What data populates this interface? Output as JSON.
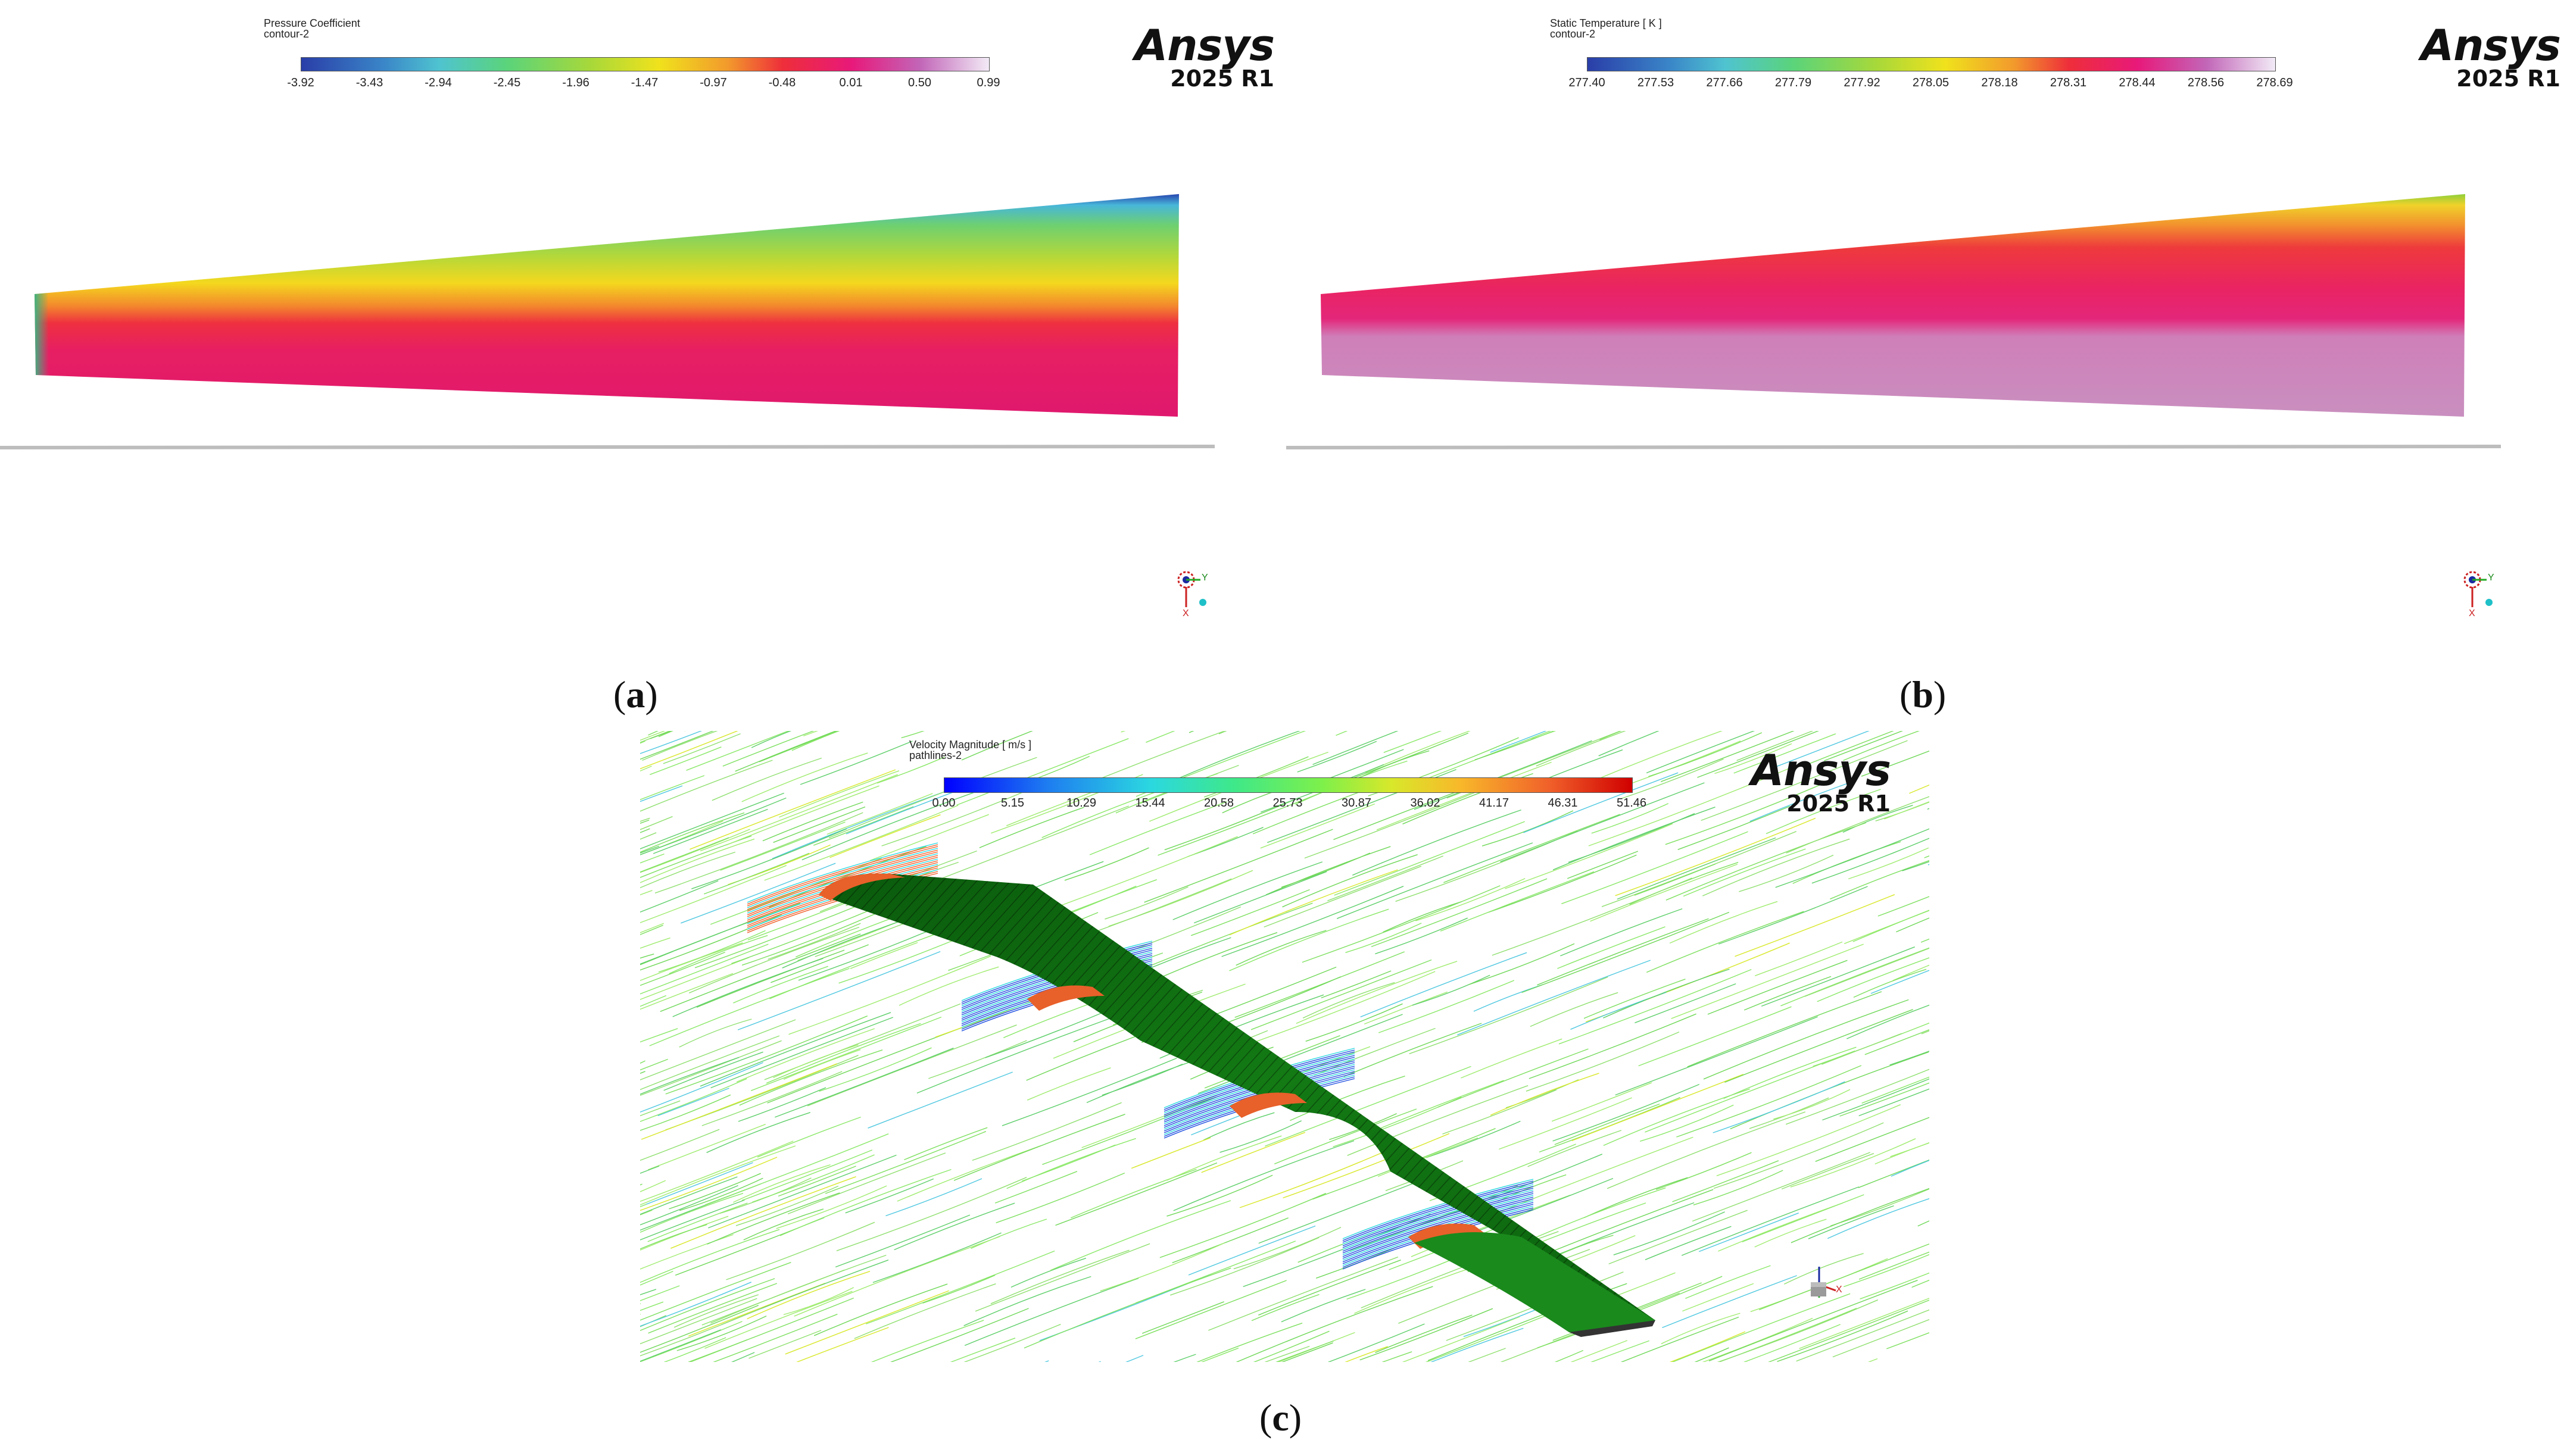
{
  "panels": [
    {
      "id": "a",
      "caption_open": "(",
      "caption_letter": "a",
      "caption_close": ")",
      "colorbar": {
        "title": "Pressure Coefficient",
        "subtitle": "contour-2",
        "ticks": [
          "-3.92",
          "-3.43",
          "-2.94",
          "-2.45",
          "-1.96",
          "-1.47",
          "-0.97",
          "-0.48",
          "0.01",
          "0.50",
          "0.99"
        ]
      },
      "logo": {
        "brand": "Ansys",
        "version": "2025 R1"
      },
      "axis_triad": {
        "label_y": "Y",
        "label_x": "X"
      }
    },
    {
      "id": "b",
      "caption_open": "(",
      "caption_letter": "b",
      "caption_close": ")",
      "colorbar": {
        "title": "Static Temperature [ K ]",
        "subtitle": "contour-2",
        "ticks": [
          "277.40",
          "277.53",
          "277.66",
          "277.79",
          "277.92",
          "278.05",
          "278.18",
          "278.31",
          "278.44",
          "278.56",
          "278.69"
        ]
      },
      "logo": {
        "brand": "Ansys",
        "version": "2025 R1"
      },
      "axis_triad": {
        "label_y": "Y",
        "label_x": "X"
      }
    },
    {
      "id": "c",
      "caption_open": "(",
      "caption_letter": "c",
      "caption_close": ")",
      "colorbar": {
        "title": "Velocity Magnitude [ m/s ]",
        "subtitle": "pathlines-2",
        "ticks": [
          "0.00",
          "5.15",
          "10.29",
          "15.44",
          "20.58",
          "25.73",
          "30.87",
          "36.02",
          "41.17",
          "46.31",
          "51.46"
        ]
      },
      "logo": {
        "brand": "Ansys",
        "version": "2025 R1"
      },
      "axis_triad": {
        "label_x": "X"
      }
    }
  ],
  "colors": {
    "jet_min": "#2b3fb0",
    "jet_max": "#f0e6f5",
    "wing_pressure_surface": "#e0186e",
    "wing_green": "#0f6a10",
    "streamline_green": "#7ee060"
  }
}
